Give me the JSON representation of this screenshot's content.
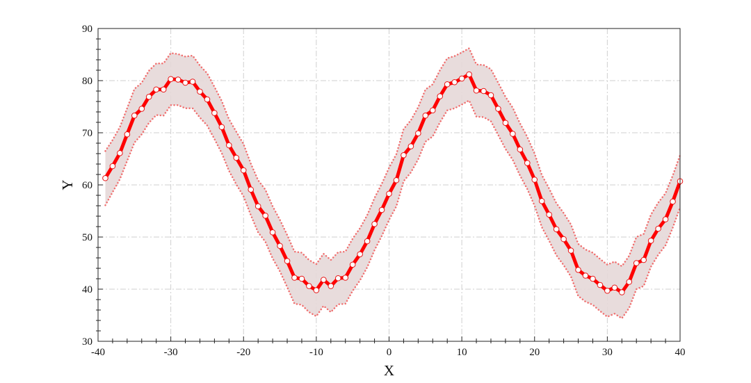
{
  "chart_data": {
    "type": "line",
    "xlabel": "X",
    "ylabel": "Y",
    "xlim": [
      -40,
      40
    ],
    "ylim": [
      30,
      90
    ],
    "xticks": [
      -40,
      -30,
      -20,
      -10,
      0,
      10,
      20,
      30,
      40
    ],
    "yticks": [
      30,
      40,
      50,
      60,
      70,
      80,
      90
    ],
    "grid": true,
    "colors": {
      "line": "#ff0000",
      "band_fill": "#e6d8d8",
      "band_edge": "#f07070",
      "marker_fill": "#ffffff",
      "marker_edge": "#e81010"
    },
    "series": [
      {
        "x": [
          -39,
          -38,
          -37,
          -36,
          -35,
          -34,
          -33,
          -32,
          -31,
          -30,
          -29,
          -28,
          -27,
          -26,
          -25,
          -24,
          -23,
          -22,
          -21,
          -20,
          -19,
          -18,
          -17,
          -16,
          -15,
          -14,
          -13,
          -12,
          -11,
          -10,
          -9,
          -8,
          -7,
          -6,
          -5,
          -4,
          -3,
          -2,
          -1,
          0,
          1,
          2,
          3,
          4,
          5,
          6,
          7,
          8,
          9,
          10,
          11,
          12,
          13,
          14,
          15,
          16,
          17,
          18,
          19,
          20,
          21,
          22,
          23,
          24,
          25,
          26,
          27,
          28,
          29,
          30,
          31,
          32,
          33,
          34,
          35,
          36,
          37,
          38,
          39,
          40
        ],
        "y": [
          61.3,
          63.6,
          66.1,
          69.7,
          73.3,
          74.6,
          76.9,
          78.3,
          78.3,
          80.3,
          80.2,
          79.6,
          79.8,
          77.9,
          76.4,
          73.8,
          71.1,
          67.6,
          65.2,
          62.8,
          59.1,
          55.9,
          54.1,
          50.9,
          48.3,
          45.4,
          42.2,
          42.0,
          40.6,
          39.8,
          41.8,
          40.6,
          42.1,
          42.2,
          44.7,
          46.7,
          49.2,
          52.5,
          55.2,
          58.3,
          60.9,
          65.7,
          67.4,
          69.9,
          73.3,
          74.3,
          77.0,
          79.3,
          79.7,
          80.4,
          81.2,
          78.1,
          78.0,
          77.2,
          74.6,
          71.9,
          69.8,
          66.8,
          64.2,
          61.0,
          56.9,
          54.3,
          51.5,
          49.6,
          47.4,
          43.7,
          42.6,
          42.0,
          40.8,
          39.7,
          40.3,
          39.4,
          41.4,
          45.0,
          45.6,
          49.3,
          51.6,
          53.4,
          56.8,
          60.7
        ],
        "lower": [
          56.1,
          58.6,
          61.1,
          64.6,
          68.1,
          69.7,
          71.9,
          73.4,
          73.3,
          75.3,
          75.3,
          74.7,
          74.7,
          72.9,
          71.4,
          68.8,
          66.1,
          62.7,
          60.1,
          57.8,
          54.2,
          50.9,
          49.1,
          45.9,
          43.4,
          40.4,
          37.2,
          37.0,
          35.6,
          34.8,
          36.8,
          35.6,
          37.1,
          37.2,
          39.7,
          41.7,
          44.2,
          47.5,
          50.2,
          53.3,
          55.9,
          60.7,
          62.4,
          64.9,
          68.3,
          69.3,
          72.0,
          74.3,
          74.7,
          75.4,
          76.2,
          73.1,
          73.0,
          72.2,
          69.6,
          66.9,
          64.8,
          61.8,
          59.2,
          56.0,
          51.9,
          49.3,
          46.5,
          44.6,
          42.4,
          38.7,
          37.6,
          37.0,
          35.8,
          34.7,
          35.3,
          34.4,
          36.4,
          40.0,
          40.6,
          44.3,
          46.6,
          48.4,
          51.8,
          55.7
        ],
        "upper": [
          66.5,
          68.6,
          71.1,
          74.7,
          78.4,
          79.6,
          81.9,
          83.3,
          83.3,
          85.3,
          85.1,
          84.6,
          84.8,
          82.9,
          81.4,
          78.8,
          76.1,
          72.6,
          70.2,
          67.8,
          64.1,
          60.9,
          59.1,
          55.9,
          53.3,
          50.4,
          47.2,
          47.0,
          45.6,
          44.8,
          46.8,
          45.6,
          47.1,
          47.2,
          49.7,
          51.7,
          54.2,
          57.5,
          60.2,
          63.3,
          65.9,
          70.7,
          72.4,
          74.9,
          78.3,
          79.3,
          82.0,
          84.3,
          84.7,
          85.4,
          86.2,
          83.1,
          83.0,
          82.2,
          79.6,
          76.9,
          74.8,
          71.8,
          69.2,
          66.0,
          61.9,
          59.3,
          56.5,
          54.6,
          52.4,
          48.7,
          47.6,
          47.0,
          45.8,
          44.7,
          45.3,
          44.4,
          46.4,
          50.0,
          50.6,
          54.3,
          56.6,
          58.4,
          61.8,
          65.7
        ]
      }
    ]
  }
}
